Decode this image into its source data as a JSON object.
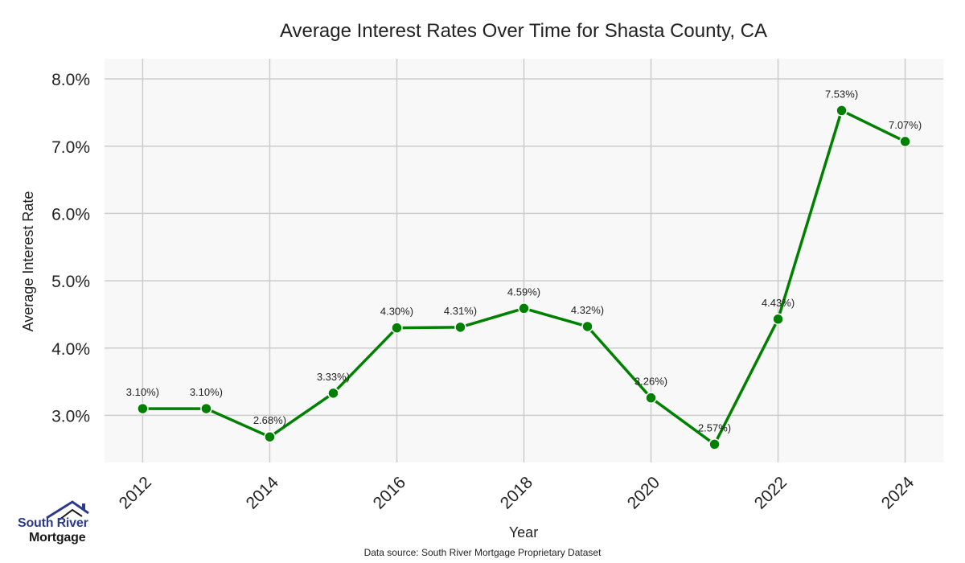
{
  "chart_data": {
    "type": "line",
    "title": "Average Interest Rates Over Time for Shasta County, CA",
    "xlabel": "Year",
    "ylabel": "Average Interest Rate",
    "x": [
      2012,
      2013,
      2014,
      2015,
      2016,
      2017,
      2018,
      2019,
      2020,
      2021,
      2022,
      2023,
      2024
    ],
    "series": [
      {
        "values": [
          3.1,
          3.1,
          2.68,
          3.33,
          4.3,
          4.31,
          4.59,
          4.32,
          3.26,
          2.57,
          4.43,
          7.53,
          7.07
        ],
        "labels": [
          "3.10%)",
          "3.10%)",
          "2.68%)",
          "3.33%)",
          "4.30%)",
          "4.31%)",
          "4.59%)",
          "4.32%)",
          "3.26%)",
          "2.57%)",
          "4.43%)",
          "7.53%)",
          "7.07%)"
        ],
        "color": "#008000"
      }
    ],
    "xticks": [
      "2012",
      "2014",
      "2016",
      "2018",
      "2020",
      "2022",
      "2024"
    ],
    "yticks": [
      "3.0%",
      "4.0%",
      "5.0%",
      "6.0%",
      "7.0%",
      "8.0%"
    ],
    "xlim": [
      2011.4,
      2024.6
    ],
    "ylim": [
      2.3,
      8.3
    ],
    "grid": true,
    "background": "#f8f8f8"
  },
  "logo": {
    "line1": "South River",
    "line2": "Mortgage",
    "icon": "house-roof-icon",
    "color_primary": "#2b3a8c",
    "color_secondary": "#1a1a1a"
  },
  "footer": {
    "source": "Data source: South River Mortgage Proprietary Dataset"
  }
}
